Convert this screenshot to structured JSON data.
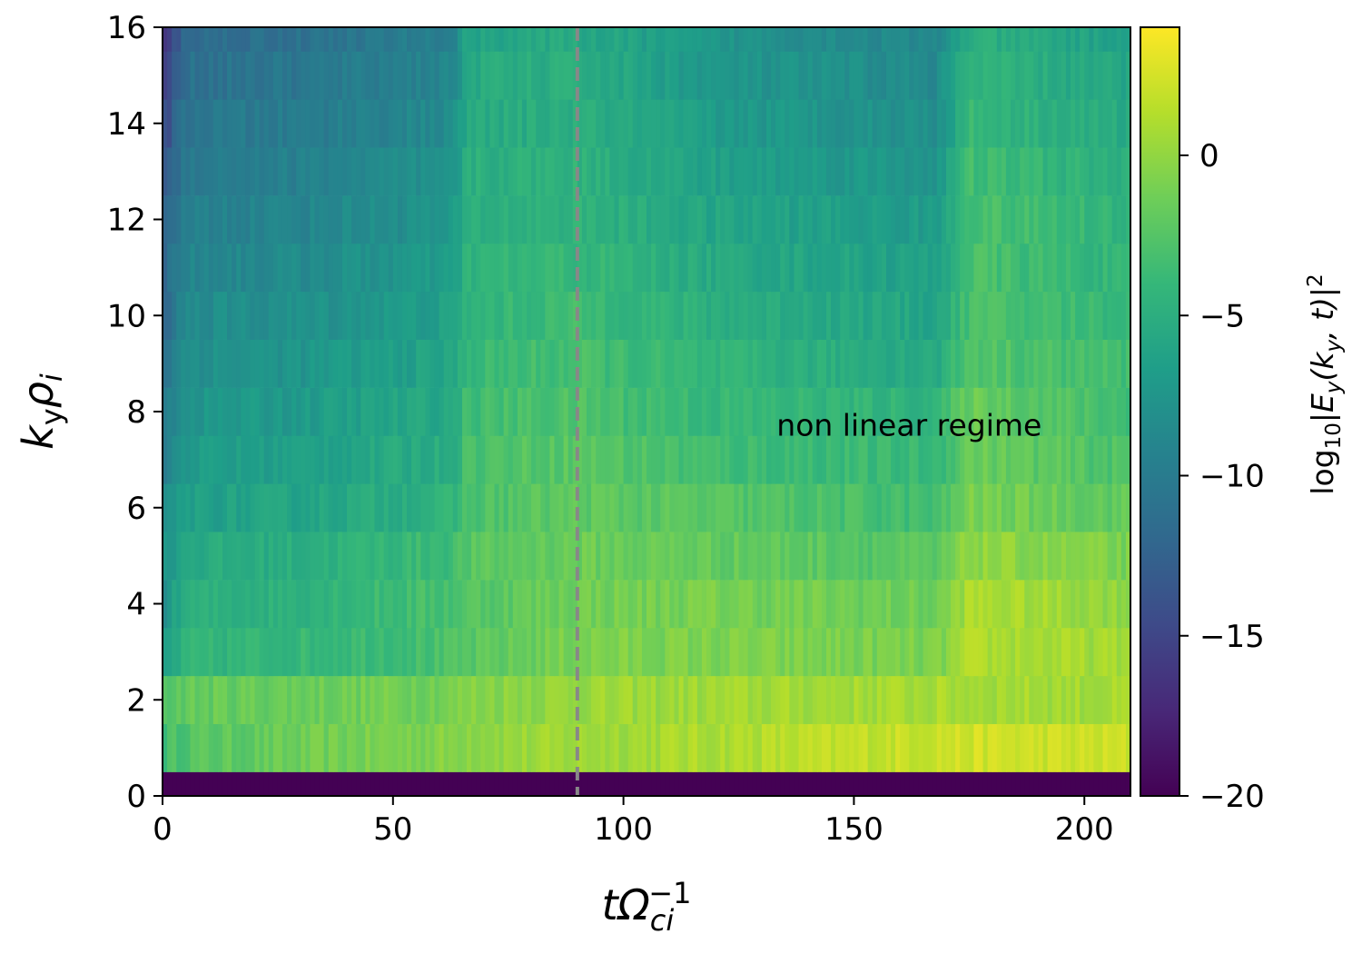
{
  "chart_data": {
    "type": "heatmap",
    "title": "",
    "xlabel": {
      "main": "tΩ",
      "sub": "ci",
      "sup": "−1"
    },
    "ylabel": {
      "k": "k",
      "ksub": "y",
      "rho": "ρ",
      "rhosub": "i"
    },
    "xlim": [
      0,
      210
    ],
    "ylim": [
      0,
      16
    ],
    "x_ticks": [
      0,
      50,
      100,
      150,
      200
    ],
    "x_tick_labels": [
      "0",
      "50",
      "100",
      "150",
      "200"
    ],
    "y_ticks": [
      0,
      2,
      4,
      6,
      8,
      10,
      12,
      14,
      16
    ],
    "y_tick_labels": [
      "0",
      "2",
      "4",
      "6",
      "8",
      "10",
      "12",
      "14",
      "16"
    ],
    "colorscale": "viridis",
    "color_range": [
      -20,
      4
    ],
    "colorbar": {
      "ticks": [
        0,
        -5,
        -10,
        -15,
        -20
      ],
      "tick_labels": [
        "0",
        "−5",
        "−10",
        "−15",
        "−20"
      ],
      "label": {
        "pre": "log",
        "sub": "10",
        "mid": "|E",
        "esub": "y",
        "args": "(k",
        "ksub": "y",
        "tail": ", t)|",
        "sup": "2"
      }
    },
    "ky_rows": [
      0,
      1,
      2,
      3,
      4,
      5,
      6,
      7,
      8,
      9,
      10,
      11,
      12,
      13,
      14,
      15,
      16
    ],
    "time_nodes": [
      0,
      5,
      30,
      63,
      66,
      90,
      120,
      168,
      175,
      210
    ],
    "values_approx": [
      [
        -20,
        -20,
        -20,
        -20,
        -20,
        -20,
        -20,
        -20,
        -20,
        -20
      ],
      [
        -3.5,
        -2.5,
        -1.5,
        -0.5,
        0,
        0.5,
        1.0,
        2.2,
        2.3,
        2.0
      ],
      [
        -2.5,
        -1.8,
        -1.5,
        -1.0,
        -0.5,
        0.3,
        0.5,
        0.8,
        0.8,
        0.6
      ],
      [
        -7,
        -4.5,
        -4,
        -3.0,
        -2.5,
        -0.8,
        -0.8,
        -1.0,
        1.0,
        0.5
      ],
      [
        -8,
        -5,
        -4.5,
        -3.0,
        -2.5,
        -1.2,
        -1.0,
        -1.5,
        1.0,
        0.0
      ],
      [
        -8,
        -5.5,
        -5,
        -3.5,
        -2.5,
        -1.5,
        -1.8,
        -2.5,
        0.0,
        -1.0
      ],
      [
        -9,
        -6.5,
        -6,
        -4.5,
        -3.0,
        -2.0,
        -2.5,
        -3.5,
        -1.0,
        -2.0
      ],
      [
        -10,
        -7,
        -6.5,
        -5.0,
        -3.0,
        -2.2,
        -3.5,
        -4.0,
        -1.5,
        -3.0
      ],
      [
        -10,
        -7.5,
        -7,
        -5.5,
        -3.5,
        -2.8,
        -4.0,
        -4.5,
        -1.5,
        -3.5
      ],
      [
        -11,
        -8,
        -7.5,
        -6.0,
        -4.0,
        -3.2,
        -4.5,
        -5.5,
        -2.5,
        -3.5
      ],
      [
        -12,
        -8.5,
        -8,
        -6.5,
        -4.5,
        -3.5,
        -5.0,
        -6.0,
        -3.0,
        -4.0
      ],
      [
        -12,
        -9,
        -8.5,
        -7.0,
        -4.5,
        -4.0,
        -5.5,
        -6.5,
        -3.0,
        -4.5
      ],
      [
        -13,
        -9.5,
        -9,
        -7.5,
        -5.0,
        -4.5,
        -6.0,
        -7.0,
        -3.0,
        -4.5
      ],
      [
        -14,
        -10,
        -9.5,
        -8.0,
        -5.0,
        -4.5,
        -6.5,
        -7.5,
        -3.5,
        -5.0
      ],
      [
        -15,
        -10.5,
        -10,
        -8.5,
        -5.5,
        -5.0,
        -7.0,
        -8.0,
        -4.0,
        -5.5
      ],
      [
        -16,
        -11,
        -10.5,
        -9.0,
        -5.5,
        -5.0,
        -7.5,
        -8.5,
        -4.5,
        -6.0
      ],
      [
        -17,
        -11.5,
        -11,
        -9.5,
        -6.0,
        -5.5,
        -7.5,
        -9.0,
        -5.0,
        -6.5
      ]
    ],
    "vline": {
      "x": 90,
      "style": "dashed",
      "color": "#888888"
    },
    "annotation": {
      "text": "non linear regime",
      "x": 162,
      "y": 7.5
    }
  }
}
